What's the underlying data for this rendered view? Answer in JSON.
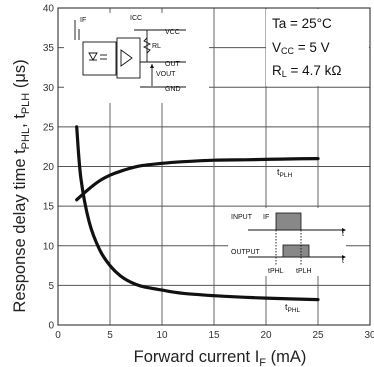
{
  "chart_data": {
    "type": "line",
    "xlabel": "Forward current I",
    "xlabel_sub": "F",
    "xlabel_unit": " (mA)",
    "ylabel": "Response delay time t",
    "ylabel_sub1": "PHL",
    "ylabel_mid": ", t",
    "ylabel_sub2": "PLH",
    "ylabel_unit": " (μs)",
    "xlim": [
      0,
      30
    ],
    "ylim": [
      0,
      40
    ],
    "x_ticks": [
      0,
      5,
      10,
      15,
      20,
      25,
      30
    ],
    "y_ticks": [
      0,
      5,
      10,
      15,
      20,
      25,
      30,
      35,
      40
    ],
    "grid": true,
    "series": [
      {
        "name": "tPLH",
        "x": [
          1.8,
          3,
          4,
          5,
          6,
          7,
          8,
          10,
          12,
          15,
          18,
          20,
          22,
          25
        ],
        "y": [
          15.8,
          17.2,
          18.2,
          18.9,
          19.4,
          19.8,
          20.1,
          20.4,
          20.6,
          20.8,
          20.85,
          20.9,
          20.95,
          21.0
        ]
      },
      {
        "name": "tPHL",
        "x": [
          1.8,
          2.2,
          3,
          4,
          5,
          6,
          7,
          8,
          10,
          12,
          15,
          18,
          20,
          25
        ],
        "y": [
          25,
          18.5,
          13,
          9.5,
          7.5,
          6.2,
          5.4,
          4.9,
          4.4,
          4.0,
          3.7,
          3.5,
          3.4,
          3.2
        ]
      }
    ],
    "conditions": {
      "ta": "Ta = 25°C",
      "vcc_pre": "V",
      "vcc_sub": "CC",
      "vcc_post": " = 5 V",
      "rl_pre": "R",
      "rl_sub": "L",
      "rl_post": " = 4.7 kΩ"
    },
    "series_labels": {
      "plh_pre": "t",
      "plh_sub": "PLH",
      "phl_pre": "t",
      "phl_sub": "PHL"
    },
    "circuit": {
      "if_label": "IF",
      "icc_label": "ICC",
      "vcc_label": "VCC",
      "rl_label": "RL",
      "out_label": "OUT",
      "vout_label": "VOUT",
      "gnd_label": "GND"
    },
    "timing": {
      "input_label": "INPUT",
      "input_signal": "IF",
      "output_label": "OUTPUT",
      "t_label": "t",
      "tphl_label": "tPHL",
      "tplh_label": "tPLH"
    }
  }
}
